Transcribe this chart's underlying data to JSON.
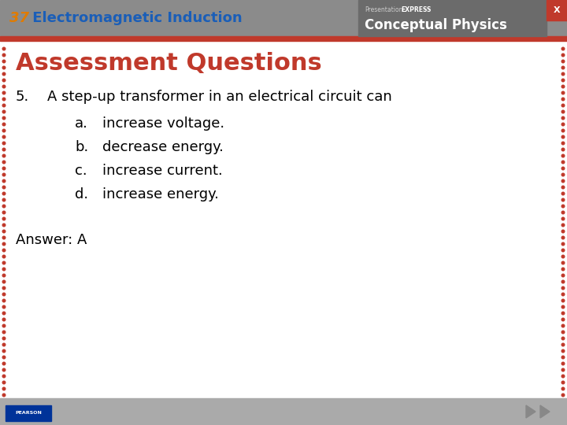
{
  "header_bg_color": "#8B8B8B",
  "header_red_stripe_color": "#C0392B",
  "header_number_color": "#E07B00",
  "header_number": "37",
  "header_title": " Electromagnetic Induction",
  "header_title_color": "#1A5EB8",
  "header_right_bg": "#6B6B6B",
  "slide_bg": "#FFFFFF",
  "title_text": "Assessment Questions",
  "title_color": "#C0392B",
  "question_number": "5.",
  "question_text": "A step-up transformer in an electrical circuit can",
  "choice_labels": [
    "a.",
    "b.",
    "c.",
    "d."
  ],
  "choice_texts": [
    "increase voltage.",
    "decrease energy.",
    "increase current.",
    "increase energy."
  ],
  "answer_text": "Answer: A",
  "body_text_color": "#000000",
  "footer_bg": "#AAAAAA",
  "border_dot_color": "#C0392B",
  "x_button_color": "#C0392B",
  "pearson_bg": "#003399",
  "arrow_color": "#888888"
}
